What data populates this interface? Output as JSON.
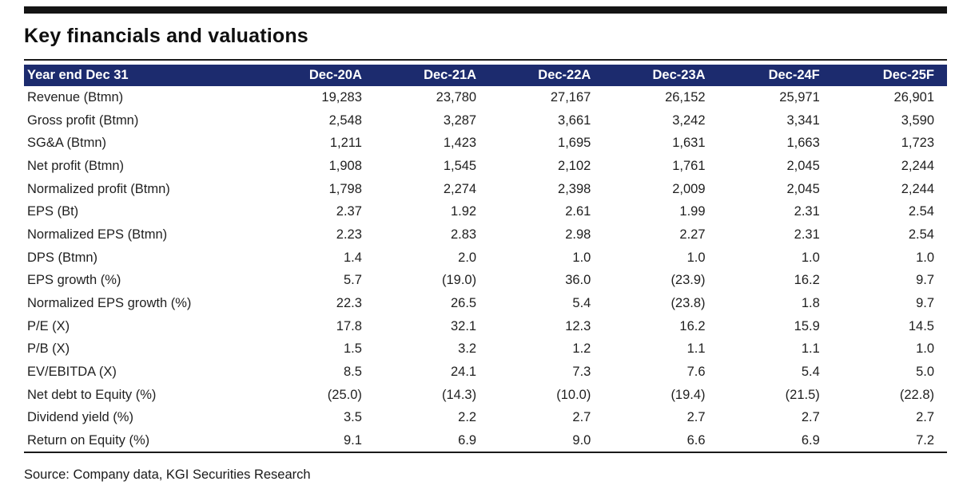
{
  "page": {
    "title": "Key financials and valuations",
    "source": "Source: Company data, KGI Securities Research"
  },
  "colors": {
    "header_bg": "#1C2B6E",
    "header_text": "#FFFFFF",
    "top_bar": "#141414",
    "rule": "#1A1A1A"
  },
  "table": {
    "header": {
      "label": "Year end Dec 31",
      "columns": [
        "Dec-20A",
        "Dec-21A",
        "Dec-22A",
        "Dec-23A",
        "Dec-24F",
        "Dec-25F"
      ]
    },
    "rows": [
      {
        "label": "Revenue (Btmn)",
        "values": [
          "19,283",
          "23,780",
          "27,167",
          "26,152",
          "25,971",
          "26,901"
        ]
      },
      {
        "label": "Gross profit (Btmn)",
        "values": [
          "2,548",
          "3,287",
          "3,661",
          "3,242",
          "3,341",
          "3,590"
        ]
      },
      {
        "label": "SG&A (Btmn)",
        "values": [
          "1,211",
          "1,423",
          "1,695",
          "1,631",
          "1,663",
          "1,723"
        ]
      },
      {
        "label": "Net profit (Btmn)",
        "values": [
          "1,908",
          "1,545",
          "2,102",
          "1,761",
          "2,045",
          "2,244"
        ]
      },
      {
        "label": "Normalized profit (Btmn)",
        "values": [
          "1,798",
          "2,274",
          "2,398",
          "2,009",
          "2,045",
          "2,244"
        ]
      },
      {
        "label": "EPS (Bt)",
        "values": [
          "2.37",
          "1.92",
          "2.61",
          "1.99",
          "2.31",
          "2.54"
        ]
      },
      {
        "label": "Normalized EPS (Btmn)",
        "values": [
          "2.23",
          "2.83",
          "2.98",
          "2.27",
          "2.31",
          "2.54"
        ]
      },
      {
        "label": "DPS (Btmn)",
        "values": [
          "1.4",
          "2.0",
          "1.0",
          "1.0",
          "1.0",
          "1.0"
        ]
      },
      {
        "label": "EPS growth (%)",
        "values": [
          "5.7",
          "(19.0)",
          "36.0",
          "(23.9)",
          "16.2",
          "9.7"
        ]
      },
      {
        "label": "Normalized EPS growth (%)",
        "values": [
          "22.3",
          "26.5",
          "5.4",
          "(23.8)",
          "1.8",
          "9.7"
        ]
      },
      {
        "label": "P/E (X)",
        "values": [
          "17.8",
          "32.1",
          "12.3",
          "16.2",
          "15.9",
          "14.5"
        ]
      },
      {
        "label": "P/B (X)",
        "values": [
          "1.5",
          "3.2",
          "1.2",
          "1.1",
          "1.1",
          "1.0"
        ]
      },
      {
        "label": "EV/EBITDA (X)",
        "values": [
          "8.5",
          "24.1",
          "7.3",
          "7.6",
          "5.4",
          "5.0"
        ]
      },
      {
        "label": "Net debt to Equity (%)",
        "values": [
          "(25.0)",
          "(14.3)",
          "(10.0)",
          "(19.4)",
          "(21.5)",
          "(22.8)"
        ]
      },
      {
        "label": "Dividend yield (%)",
        "values": [
          "3.5",
          "2.2",
          "2.7",
          "2.7",
          "2.7",
          "2.7"
        ]
      },
      {
        "label": "Return on Equity (%)",
        "values": [
          "9.1",
          "6.9",
          "9.0",
          "6.6",
          "6.9",
          "7.2"
        ]
      }
    ]
  }
}
